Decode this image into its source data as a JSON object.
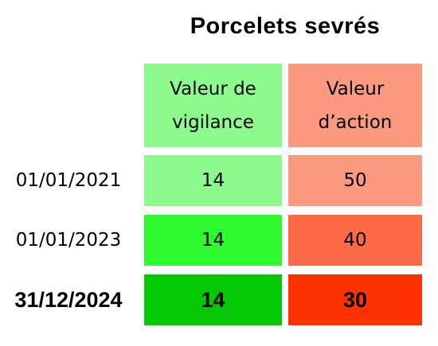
{
  "title": "Porcelets sevrés",
  "table": {
    "columns": [
      {
        "lines": [
          "Valeur de",
          "vigilance"
        ]
      },
      {
        "lines": [
          "Valeur",
          "d’action"
        ]
      }
    ],
    "rows": [
      {
        "date": "01/01/2021",
        "values": [
          14,
          50
        ]
      },
      {
        "date": "01/01/2023",
        "values": [
          14,
          40
        ]
      },
      {
        "date": "31/12/2024",
        "values": [
          14,
          30
        ]
      }
    ]
  }
}
